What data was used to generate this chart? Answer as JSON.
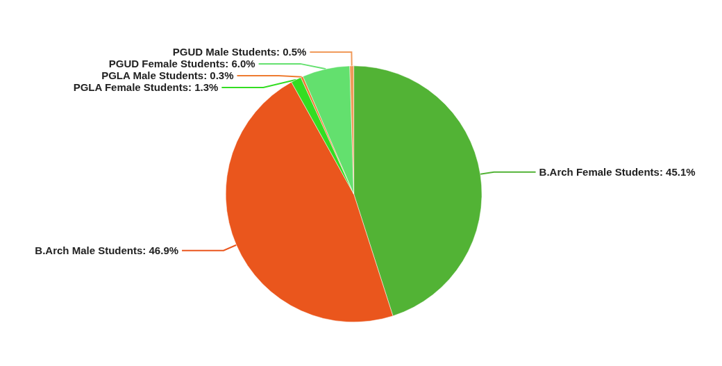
{
  "chart_data": {
    "type": "pie",
    "categories": [
      "B.Arch Female Students",
      "B.Arch Male Students",
      "PGLA Female Students",
      "PGLA Male Students",
      "PGUD Female Students",
      "PGUD Male Students"
    ],
    "values": [
      45.1,
      46.9,
      1.3,
      0.3,
      6.0,
      0.5
    ],
    "value_labels": [
      "45.1%",
      "46.9%",
      "1.3%",
      "0.3%",
      "6.0%",
      "0.5%"
    ],
    "colors": [
      "#52b335",
      "#ea561d",
      "#33dd22",
      "#ee7b30",
      "#63e06e",
      "#f09a5a"
    ],
    "legend": false
  }
}
